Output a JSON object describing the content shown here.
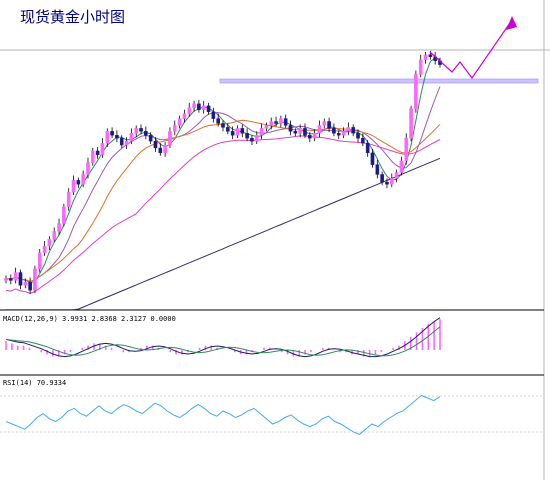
{
  "title": "现货黄金小时图",
  "chart_data": [
    {
      "type": "candlestick",
      "panel": "price",
      "title": "现货黄金小时图",
      "series": [
        {
          "name": "close",
          "values": [
            22,
            20,
            28,
            15,
            18,
            10,
            32,
            48,
            55,
            62,
            70,
            78,
            95,
            110,
            122,
            118,
            128,
            140,
            152,
            148,
            160,
            172,
            168,
            165,
            158,
            162,
            170,
            175,
            172,
            168,
            162,
            155,
            150,
            158,
            172,
            178,
            185,
            190,
            196,
            200,
            194,
            198,
            192,
            185,
            180,
            176,
            172,
            168,
            175,
            170,
            165,
            162,
            168,
            175,
            178,
            182,
            180,
            185,
            178,
            172,
            170,
            175,
            168,
            165,
            170,
            178,
            182,
            175,
            170,
            168,
            172,
            176,
            170,
            165,
            160,
            150,
            138,
            128,
            120,
            118,
            124,
            130,
            142,
            165,
            195,
            230,
            245,
            250,
            248,
            244,
            240
          ]
        },
        {
          "name": "ma-fast",
          "values": []
        },
        {
          "name": "ma-mid",
          "values": []
        },
        {
          "name": "ma-slow",
          "values": []
        },
        {
          "name": "ma-long",
          "values": []
        }
      ],
      "annotations": [
        {
          "kind": "horizontal-resistance-band",
          "level": 172
        },
        {
          "kind": "projected-path-arrow"
        }
      ]
    },
    {
      "type": "bar",
      "panel": "macd",
      "label": "MACD(12,26,9) 3.9931 2.8368 2.3127 0.0000",
      "histogram": [
        4,
        3,
        2,
        2,
        1,
        0,
        -1,
        -2,
        -3,
        -3,
        -2,
        -1,
        0,
        1,
        2,
        3,
        3,
        2,
        1,
        0,
        -1,
        -1,
        0,
        1,
        2,
        2,
        1,
        0,
        -1,
        -2,
        -2,
        -1,
        0,
        1,
        2,
        2,
        1,
        0,
        0,
        -1,
        -2,
        -2,
        -1,
        0,
        1,
        1,
        0,
        -1,
        -2,
        -3,
        -3,
        -2,
        -1,
        0,
        1,
        1,
        0,
        -1,
        -1,
        -2,
        -2,
        -3,
        -3,
        -2,
        -1,
        0,
        1,
        2,
        4,
        6,
        8,
        10,
        12,
        13,
        14
      ]
    },
    {
      "type": "line",
      "panel": "rsi",
      "label": "RSI(14) 70.9334",
      "values": [
        52,
        50,
        48,
        46,
        50,
        55,
        58,
        54,
        52,
        55,
        60,
        62,
        58,
        56,
        60,
        64,
        60,
        58,
        62,
        65,
        63,
        60,
        58,
        62,
        66,
        64,
        60,
        57,
        55,
        58,
        62,
        65,
        62,
        58,
        56,
        60,
        58,
        55,
        57,
        60,
        62,
        58,
        54,
        50,
        52,
        55,
        57,
        53,
        50,
        48,
        50,
        54,
        56,
        52,
        50,
        47,
        44,
        42,
        46,
        50,
        48,
        52,
        55,
        58,
        60,
        64,
        68,
        72,
        70,
        68,
        71
      ]
    }
  ]
}
